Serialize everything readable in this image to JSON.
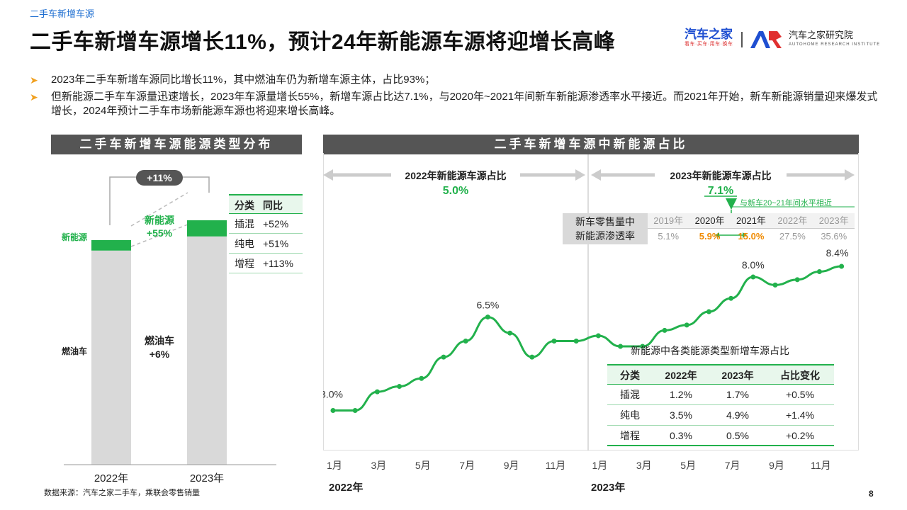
{
  "header": {
    "breadcrumb": "二手车新增车源",
    "title": "二手车新增车源增长11%，预计24年新能源车源将迎增长高峰",
    "logo_left_big": "汽车之家",
    "logo_left_small": "看车·买车·用车·换车",
    "logo_right_big": "汽车之家研究院",
    "logo_right_small": "AUTOHOME RESEARCH INSTITUTE"
  },
  "bullets": [
    "2023年二手车新增车源同比增长11%，其中燃油车仍为新增车源主体，占比93%；",
    "但新能源二手车车源量迅速增长，2023年车源量增长55%，新增车源占比达7.1%，与2020年~2021年间新车新能源渗透率水平接近。而2021年开始，新车新能源销量迎来爆发式增长，2024年预计二手车市场新能源车源也将迎来增长高峰。"
  ],
  "left_panel": {
    "header": "二手车新增车源能源类型分布",
    "growth_badge": "+11%",
    "nev_label": "新能源",
    "nev_growth_label": "新能源",
    "nev_growth_value": "+55%",
    "ice_label": "燃油车",
    "ice_growth_label": "燃油车",
    "ice_growth_value": "+6%",
    "table": {
      "headers": [
        "分类",
        "同比"
      ],
      "rows": [
        [
          "插混",
          "+52%"
        ],
        [
          "纯电",
          "+51%"
        ],
        [
          "增程",
          "+113%"
        ]
      ]
    },
    "chart_data": {
      "type": "bar",
      "stacked": true,
      "categories": [
        "2022年",
        "2023年"
      ],
      "series": [
        {
          "name": "燃油车",
          "values": [
            93.8,
            100.0
          ],
          "color": "#d9d9d9"
        },
        {
          "name": "新能源",
          "values": [
            4.6,
            7.1
          ],
          "color": "#22b14c"
        }
      ],
      "growth_total": "+11%",
      "ylim": [
        0,
        115
      ]
    }
  },
  "right_panel": {
    "header": "二手车新增车源中新能源占比",
    "left_section_label": "2022年新能源车源占比",
    "left_section_value": "5.0%",
    "right_section_label": "2023年新能源车源占比",
    "right_section_value": "7.1%",
    "near_note": "与新车20~21年间水平相近",
    "penetration_label_1": "新车零售量中",
    "penetration_label_2": "新能源渗透率",
    "penetration_years": [
      "2019年",
      "2020年",
      "2021年",
      "2022年",
      "2023年"
    ],
    "penetration_values": [
      "5.1%",
      "5.9%",
      "15.0%",
      "27.5%",
      "35.6%"
    ],
    "chart_data": {
      "type": "line",
      "x": [
        "1月",
        "2月",
        "3月",
        "4月",
        "5月",
        "6月",
        "7月",
        "8月",
        "9月",
        "10月",
        "11月",
        "12月",
        "1月",
        "2月",
        "3月",
        "4月",
        "5月",
        "6月",
        "7月",
        "8月",
        "9月",
        "10月",
        "11月",
        "12月"
      ],
      "x_tick_labels": [
        "1月",
        "3月",
        "5月",
        "7月",
        "9月",
        "11月",
        "1月",
        "3月",
        "5月",
        "7月",
        "9月",
        "11月"
      ],
      "year_labels": [
        "2022年",
        "2023年"
      ],
      "series": [
        {
          "values": [
            3.0,
            3.0,
            3.7,
            3.9,
            4.2,
            5.0,
            5.6,
            6.5,
            5.9,
            5.0,
            5.6,
            5.6,
            5.8,
            5.4,
            5.4,
            6.0,
            6.2,
            6.7,
            7.2,
            8.0,
            7.7,
            7.9,
            8.2,
            8.4
          ],
          "color": "#22b14c"
        }
      ],
      "point_labels": {
        "0": "3.0%",
        "7": "6.5%",
        "19": "8.0%",
        "23": "8.4%"
      },
      "ylim": [
        1.5,
        11.0
      ],
      "grid": false
    },
    "sub_table": {
      "title": "新能源中各类能源类型新增车源占比",
      "headers": [
        "分类",
        "2022年",
        "2023年",
        "占比变化"
      ],
      "rows": [
        [
          "插混",
          "1.2%",
          "1.7%",
          "+0.5%"
        ],
        [
          "纯电",
          "3.5%",
          "4.9%",
          "+1.4%"
        ],
        [
          "增程",
          "0.3%",
          "0.5%",
          "+0.2%"
        ]
      ]
    }
  },
  "footer": {
    "source": "数据来源：汽车之家二手车，乘联会零售销量",
    "page_number": "8"
  },
  "colors": {
    "green": "#22b14c",
    "gray_bar": "#d9d9d9",
    "header_bg": "#555555",
    "accent_blue": "#1f6fd1",
    "orange": "#f08a00"
  }
}
